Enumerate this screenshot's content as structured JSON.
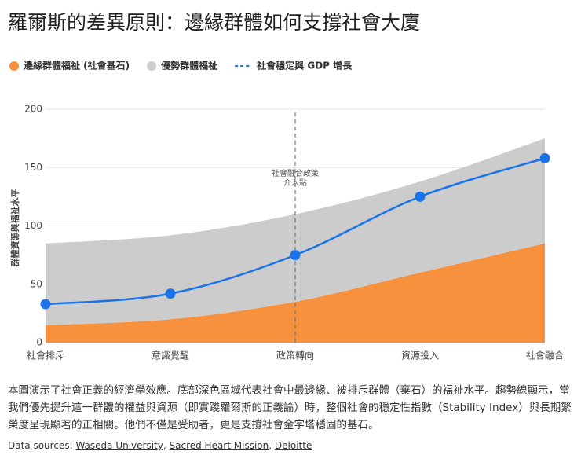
{
  "chart_data": {
    "type": "stacked_area_line",
    "title": "羅爾斯的差異原則：邊緣群體如何支撐社會大廈",
    "y_label": "群體資源與福祉水平",
    "categories": [
      "社會排斥",
      "意識覺醒",
      "政策轉向",
      "資源投入",
      "社會融合"
    ],
    "series": [
      {
        "name": "邊緣群體福祉 (社會基石)",
        "color": "#f7913d",
        "kind": "area",
        "values": [
          15,
          20,
          35,
          60,
          85
        ]
      },
      {
        "name": "優勢群體福祉",
        "color": "#cccccc",
        "kind": "area",
        "values": [
          70,
          72,
          75,
          78,
          90
        ]
      },
      {
        "name": "社會穩定與 GDP 增長",
        "color": "#1a73e8",
        "kind": "line",
        "values": [
          33,
          42,
          75,
          125,
          158
        ]
      }
    ],
    "annotation": [
      "社會融合政策",
      "介入點"
    ],
    "ylim": [
      0,
      200
    ],
    "yticks": [
      0,
      50,
      100,
      150,
      200
    ],
    "grid": true
  },
  "description": "本圖演示了社會正義的經濟學效應。底部深色區域代表社會中最邊緣、被排斥群體（棄石）的福祉水平。趨勢線顯示，當我們優先提升這一群體的權益與資源（即實踐羅爾斯的正義論）時，整個社會的穩定性指數（Stability Index）與長期繁榮度呈現顯著的正相關。他們不僅是受助者，更是支撐社會金字塔穩固的基石。",
  "sources_label": "Data sources:",
  "sources": [
    "Waseda University",
    "Sacred Heart Mission",
    "Deloitte"
  ]
}
